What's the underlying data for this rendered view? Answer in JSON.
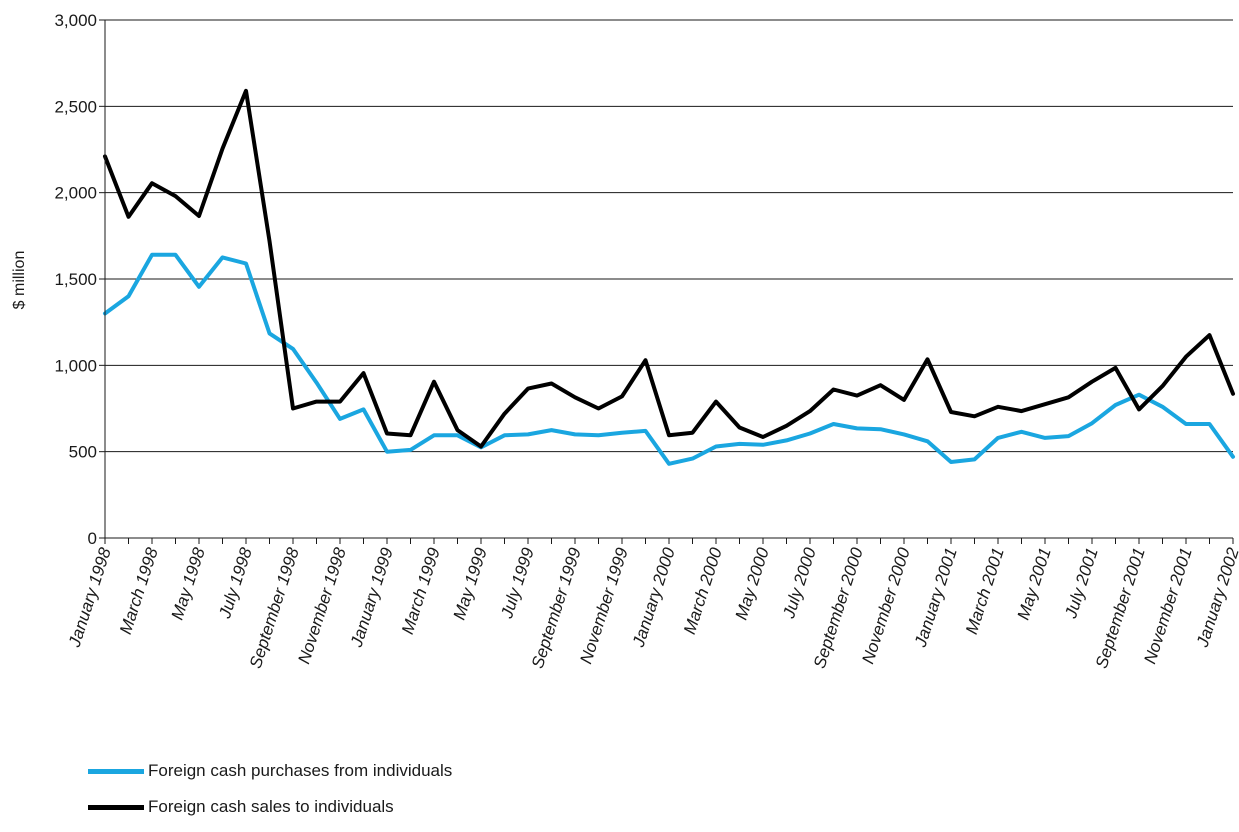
{
  "chart_data": {
    "type": "line",
    "title": "",
    "xlabel": "",
    "ylabel": "$ million",
    "ylim": [
      0,
      3000
    ],
    "yticks": [
      0,
      500,
      1000,
      1500,
      2000,
      2500,
      3000
    ],
    "ytick_labels": [
      "0",
      "500",
      "1,000",
      "1,500",
      "2,000",
      "2,500",
      "3,000"
    ],
    "grid": "horizontal",
    "legend_position": "bottom-left",
    "categories": [
      "January 1998",
      "February 1998",
      "March 1998",
      "April 1998",
      "May 1998",
      "June 1998",
      "July 1998",
      "August 1998",
      "September 1998",
      "October 1998",
      "November 1998",
      "December 1998",
      "January 1999",
      "February 1999",
      "March 1999",
      "April 1999",
      "May 1999",
      "June 1999",
      "July 1999",
      "August 1999",
      "September 1999",
      "October 1999",
      "November 1999",
      "December 1999",
      "January 2000",
      "February 2000",
      "March 2000",
      "April 2000",
      "May 2000",
      "June 2000",
      "July 2000",
      "August 2000",
      "September 2000",
      "October 2000",
      "November 2000",
      "December 2000",
      "January 2001",
      "February 2001",
      "March 2001",
      "April 2001",
      "May 2001",
      "June 2001",
      "July 2001",
      "August 2001",
      "September 2001",
      "October 2001",
      "November 2001",
      "December 2001",
      "January 2002"
    ],
    "tick_every": 2,
    "series": [
      {
        "name": "Foreign cash purchases from individuals",
        "color": "#1aa6e0",
        "values": [
          1300,
          1400,
          1640,
          1640,
          1455,
          1625,
          1590,
          1185,
          1095,
          900,
          690,
          745,
          500,
          510,
          595,
          595,
          525,
          595,
          600,
          625,
          600,
          595,
          610,
          620,
          430,
          460,
          530,
          545,
          540,
          565,
          605,
          660,
          635,
          630,
          600,
          560,
          440,
          455,
          580,
          615,
          580,
          590,
          665,
          770,
          830,
          760,
          660,
          660,
          470
        ]
      },
      {
        "name": "Foreign cash sales to individuals",
        "color": "#000000",
        "values": [
          2210,
          1860,
          2055,
          1980,
          1865,
          2255,
          2590,
          1720,
          750,
          790,
          790,
          955,
          605,
          595,
          905,
          625,
          530,
          720,
          865,
          895,
          815,
          750,
          820,
          1030,
          595,
          610,
          790,
          640,
          585,
          650,
          735,
          860,
          825,
          885,
          800,
          1035,
          730,
          705,
          760,
          735,
          775,
          815,
          905,
          985,
          745,
          880,
          1050,
          1175,
          835
        ]
      }
    ]
  }
}
